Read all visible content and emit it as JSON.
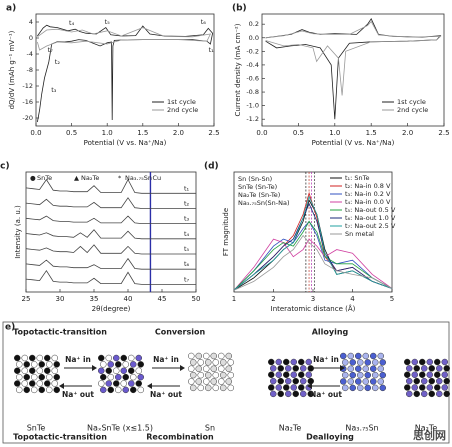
{
  "chart_data": [
    {
      "type": "line",
      "panel": "a)",
      "xlabel": "Potential (V vs. Na⁺/Na)",
      "ylabel": "dQ/dV (mAh g⁻¹ mV⁻¹)",
      "xlim": [
        0,
        2.5
      ],
      "xticks": [
        {
          "value": 0,
          "label": "0.0"
        },
        0.5,
        {
          "value": 1,
          "label": "1.0"
        },
        1.5,
        {
          "value": 2,
          "label": "2.0"
        },
        2.5
      ],
      "ylim": [
        -22,
        6
      ],
      "yticks": [
        4,
        0,
        -4,
        -8,
        -12,
        -16,
        -20
      ],
      "legend": "lower right",
      "series": [
        {
          "name": "1st cycle",
          "color": "#222222",
          "x": [
            0.02,
            0.1,
            0.15,
            0.2,
            0.3,
            0.45,
            0.55,
            0.62,
            0.7,
            0.85,
            0.98,
            1.05,
            1.2,
            1.4,
            1.5,
            1.6,
            1.8,
            2.1,
            2.35,
            2.42,
            2.48,
            2.45,
            2.4,
            2.2,
            1.8,
            1.5,
            1.2,
            1.1,
            1.08,
            1.07,
            1.06,
            1.0,
            0.9,
            0.7,
            0.6,
            0.5,
            0.4,
            0.3,
            0.22,
            0.18,
            0.12,
            0.08,
            0.05,
            0.02
          ],
          "values": [
            0.5,
            2.5,
            3.2,
            2.8,
            2.6,
            1.8,
            2.2,
            1.6,
            1.2,
            1.0,
            2.6,
            0.8,
            0.5,
            0.6,
            3.0,
            1.0,
            0.5,
            0.4,
            0.8,
            2.4,
            1.2,
            -1.5,
            -0.8,
            -0.4,
            -0.4,
            -0.4,
            -0.5,
            -0.6,
            -2,
            -20.5,
            -1,
            -1.2,
            -2.0,
            -0.6,
            -0.4,
            -0.8,
            -1.0,
            -0.9,
            -1.5,
            -6,
            -10,
            -14,
            -18,
            -21
          ]
        },
        {
          "name": "2nd cycle",
          "color": "#999999",
          "x": [
            0.02,
            0.15,
            0.3,
            0.5,
            0.65,
            0.8,
            1.0,
            1.2,
            1.5,
            1.8,
            2.2,
            2.45,
            2.4,
            2.0,
            1.5,
            1.2,
            1.0,
            0.7,
            0.5,
            0.3,
            0.15,
            0.05,
            0.02
          ],
          "values": [
            0.3,
            2.0,
            2.2,
            1.5,
            2.0,
            1.0,
            1.8,
            0.5,
            2.6,
            0.4,
            0.3,
            1.0,
            -0.8,
            -0.4,
            -0.4,
            -0.5,
            -1.5,
            -0.8,
            -1.2,
            -1.0,
            -2.0,
            -3,
            -1
          ]
        }
      ],
      "annotations": [
        {
          "text": "t₁",
          "x": 2.46,
          "y": -3
        },
        {
          "text": "t₂",
          "x": 0.3,
          "y": -6
        },
        {
          "text": "t₃",
          "x": 0.25,
          "y": -13
        },
        {
          "text": "t₄",
          "x": 0.5,
          "y": 3.8
        },
        {
          "text": "t₅",
          "x": 1.0,
          "y": 4
        },
        {
          "text": "t₆",
          "x": 2.35,
          "y": 4
        },
        {
          "text": "t₇",
          "x": 0.2,
          "y": -3
        }
      ]
    },
    {
      "type": "line",
      "panel": "(b)",
      "xlabel": "Potential (V vs. Na⁺/Na)",
      "ylabel": "Current density (mA cm⁻²)",
      "xlim": [
        0,
        2.5
      ],
      "xticks": [
        {
          "value": 0,
          "label": "0.0"
        },
        0.5,
        {
          "value": 1,
          "label": "1.0"
        },
        1.5,
        {
          "value": 2,
          "label": "2.0"
        },
        2.5
      ],
      "ylim": [
        -1.3,
        0.35
      ],
      "yticks": [
        0.2,
        {
          "value": 0,
          "label": "0.0"
        },
        -0.2,
        -0.4,
        -0.6,
        -0.8,
        {
          "value": -1,
          "label": "-1.0"
        },
        -1.2
      ],
      "legend": "lower right",
      "series": [
        {
          "name": "1st cycle",
          "color": "#222222",
          "x": [
            0.05,
            0.2,
            0.4,
            0.55,
            0.65,
            0.8,
            1.0,
            1.3,
            1.45,
            1.5,
            1.6,
            1.8,
            2.2,
            2.45,
            2.4,
            2.0,
            1.5,
            1.2,
            1.05,
            1.0,
            0.95,
            0.8,
            0.6,
            0.4,
            0.2,
            0.05
          ],
          "values": [
            0.0,
            0.02,
            0.05,
            0.12,
            0.08,
            0.05,
            0.06,
            0.05,
            0.2,
            0.28,
            0.05,
            0.02,
            0.01,
            0.03,
            -0.03,
            -0.05,
            -0.06,
            -0.08,
            -0.3,
            -1.2,
            -0.4,
            -0.15,
            -0.1,
            -0.12,
            -0.15,
            -0.05
          ]
        },
        {
          "name": "2nd cycle",
          "color": "#999999",
          "x": [
            0.05,
            0.3,
            0.55,
            0.7,
            0.9,
            1.2,
            1.45,
            1.5,
            1.6,
            2.0,
            2.45,
            2.4,
            2.0,
            1.5,
            1.15,
            1.1,
            1.05,
            0.9,
            0.75,
            0.7,
            0.5,
            0.3,
            0.05
          ],
          "values": [
            0,
            0.03,
            0.1,
            0.06,
            0.05,
            0.05,
            0.18,
            0.24,
            0.04,
            0.01,
            0.02,
            -0.03,
            -0.05,
            -0.06,
            -0.2,
            -0.85,
            -0.3,
            -0.12,
            -0.35,
            -0.15,
            -0.1,
            -0.12,
            -0.04
          ]
        }
      ]
    },
    {
      "type": "line",
      "panel": "(c)",
      "xlabel": "2θ(degree)",
      "ylabel": "Intensity (a. u.)",
      "xlim": [
        25,
        50
      ],
      "xticks": [
        25,
        30,
        35,
        40,
        45,
        50
      ],
      "ylim": [
        0.5,
        8.4
      ],
      "series_labels": "end",
      "key_markers": [
        {
          "symbol": "●",
          "label": "SnTe",
          "color": "#1f9e7a"
        },
        {
          "symbol": "▲",
          "label": "Na₂Te",
          "color": "#333333"
        },
        {
          "symbol": "*",
          "label": "Na₃.₇₅Sn",
          "color": "#333333"
        }
      ],
      "ref_lines": [
        {
          "x": 43.3,
          "label": "Cu",
          "color": "#2b2fa8"
        }
      ],
      "ref_label": "top",
      "x": [
        25,
        26,
        27,
        28,
        29,
        30,
        31,
        32,
        33,
        34,
        35,
        36,
        37,
        38,
        39,
        40,
        41,
        42,
        43,
        44,
        45,
        46,
        47,
        48,
        49,
        50
      ],
      "series": [
        {
          "name": "t₁",
          "color": "#444444",
          "values": [
            7.35,
            7.3,
            7.25,
            7.9,
            7.2,
            7.15,
            7.15,
            7.1,
            7.1,
            7.1,
            7.5,
            7.05,
            7.05,
            7.05,
            7.05,
            7.9,
            7.05,
            7,
            7,
            7,
            7,
            7,
            7,
            7,
            7,
            7
          ]
        },
        {
          "name": "t₂",
          "color": "#444444",
          "values": [
            6.35,
            6.3,
            6.25,
            6.6,
            6.2,
            6.15,
            6.15,
            6.1,
            6.1,
            6.1,
            6.4,
            6.05,
            6.05,
            6.05,
            6.05,
            6.7,
            6.05,
            6,
            6,
            6,
            6,
            6,
            6,
            6,
            6,
            6
          ]
        },
        {
          "name": "t₃",
          "color": "#444444",
          "values": [
            5.35,
            5.3,
            5.25,
            5.5,
            5.2,
            5.15,
            5.15,
            5.1,
            5.1,
            5.1,
            5.35,
            5.05,
            5.05,
            5.05,
            5.05,
            5.5,
            5.05,
            5,
            5,
            5,
            5,
            5,
            5,
            5,
            5,
            5
          ]
        },
        {
          "name": "t₄",
          "color": "#444444",
          "values": [
            4.35,
            4.3,
            4.25,
            4.4,
            4.2,
            4.15,
            4.15,
            4.1,
            4.4,
            4.1,
            4.6,
            4.05,
            4.05,
            4.05,
            4.05,
            4.5,
            4.05,
            4,
            4,
            4,
            4,
            4,
            4,
            4,
            4,
            4
          ]
        },
        {
          "name": "t₅",
          "color": "#444444",
          "values": [
            3.35,
            3.3,
            3.25,
            3.4,
            3.2,
            3.15,
            3.15,
            3.1,
            3.5,
            3.1,
            3.6,
            3.05,
            3.05,
            3.05,
            3.05,
            3.5,
            3.05,
            3,
            3,
            3,
            3,
            3,
            3,
            3,
            3,
            3
          ]
        },
        {
          "name": "t₆",
          "color": "#444444",
          "values": [
            2.35,
            2.3,
            2.25,
            2.6,
            2.2,
            2.15,
            2.15,
            2.1,
            2.1,
            2.1,
            2.3,
            2.05,
            2.05,
            2.05,
            2.05,
            2.7,
            2.05,
            2,
            2,
            2,
            2,
            2,
            2,
            2,
            2,
            2
          ]
        },
        {
          "name": "t₇",
          "color": "#444444",
          "values": [
            1.35,
            1.3,
            1.25,
            1.9,
            1.2,
            1.15,
            1.15,
            1.1,
            1.1,
            1.1,
            1.4,
            1.05,
            1.05,
            1.05,
            1.05,
            1.8,
            1.05,
            1,
            1,
            1,
            1,
            1,
            1,
            1,
            1,
            1
          ]
        }
      ]
    },
    {
      "type": "line",
      "panel": "(d)",
      "xlabel": "Interatomic distance (Å)",
      "ylabel": "FT magnitude",
      "xlim": [
        1,
        5
      ],
      "xticks": [
        1,
        2,
        3,
        4,
        5
      ],
      "ylim": [
        0,
        3.4
      ],
      "legend": "upper right",
      "ref_lines": [
        {
          "x": 2.82,
          "label": "Sn (Sn-Sn)",
          "color": "#222222"
        },
        {
          "x": 2.9,
          "label": "SnTe (Sn-Te)",
          "color": "#c0392b"
        },
        {
          "x": 2.96,
          "label": "Na₂Te (Sn-Te)",
          "color": "#b030b0"
        },
        {
          "x": 3.04,
          "label": "Na₃.₇₅Sn(Sn-Na)",
          "color": "#333333"
        }
      ],
      "ref_label": "stack",
      "x": [
        1,
        1.5,
        2,
        2.25,
        2.5,
        2.75,
        2.9,
        3.1,
        3.3,
        3.6,
        4,
        4.5,
        5
      ],
      "series": [
        {
          "name": "t₁: SnTe",
          "color": "#111111",
          "values": [
            0.05,
            0.4,
            0.9,
            1.2,
            1.4,
            2.0,
            2.6,
            2.2,
            1.2,
            0.5,
            0.6,
            0.3,
            0.1
          ]
        },
        {
          "name": "t₂: Na-in 0.8 V",
          "color": "#d02020",
          "values": [
            0.05,
            0.5,
            1.0,
            1.3,
            1.6,
            2.2,
            2.8,
            2.1,
            1.0,
            0.6,
            0.7,
            0.3,
            0.1
          ]
        },
        {
          "name": "t₃: Na-in 0.2 V",
          "color": "#3050c0",
          "values": [
            0.05,
            0.6,
            1.3,
            1.5,
            1.4,
            1.8,
            2.0,
            1.6,
            0.9,
            0.8,
            0.9,
            0.4,
            0.1
          ]
        },
        {
          "name": "t₄: Na-in 0.0 V",
          "color": "#d040a0",
          "values": [
            0.05,
            0.7,
            1.5,
            1.4,
            1.0,
            1.2,
            1.5,
            1.3,
            1.0,
            1.2,
            1.1,
            0.5,
            0.1
          ]
        },
        {
          "name": "t₅: Na-out 0.5 V",
          "color": "#20a040",
          "values": [
            0.05,
            0.6,
            1.2,
            1.4,
            1.3,
            1.7,
            2.0,
            1.7,
            1.0,
            0.8,
            0.8,
            0.4,
            0.1
          ]
        },
        {
          "name": "t₆: Na-out 1.0 V",
          "color": "#1a2a7a",
          "values": [
            0.05,
            0.5,
            1.0,
            1.3,
            1.5,
            2.1,
            2.5,
            2.0,
            1.1,
            0.6,
            0.7,
            0.3,
            0.1
          ]
        },
        {
          "name": "t₇: Na-out 2.5 V",
          "color": "#20a0a0",
          "values": [
            0.05,
            0.5,
            0.9,
            1.2,
            1.4,
            2.1,
            2.7,
            2.2,
            1.1,
            0.5,
            0.6,
            0.3,
            0.1
          ]
        },
        {
          "name": "Sn metal",
          "color": "#999999",
          "values": [
            0.05,
            0.3,
            0.7,
            1.0,
            1.2,
            1.6,
            1.4,
            1.2,
            0.8,
            0.6,
            0.5,
            0.4,
            0.1
          ]
        }
      ]
    }
  ],
  "diagram": {
    "panel": "e)",
    "stages": [
      "SnTe",
      "NaₓSnTe (x≤1.5)",
      "Sn",
      "Na₂Te",
      "Na₃.₇₅Sn",
      "Na₂Te"
    ],
    "top_processes": [
      "Topotactic-transition",
      "Conversion",
      "Alloying"
    ],
    "bottom_processes": [
      "Topotactic-transition",
      "Recombination",
      "Dealloying"
    ],
    "arrows": [
      {
        "in": "Na⁺ in",
        "out": "Na⁺ out"
      },
      {
        "in": "Na⁺ in",
        "out": "Na⁺ out"
      },
      {
        "in": "Na⁺ in",
        "out": "Na⁺ out"
      }
    ]
  },
  "watermark": "思创网"
}
